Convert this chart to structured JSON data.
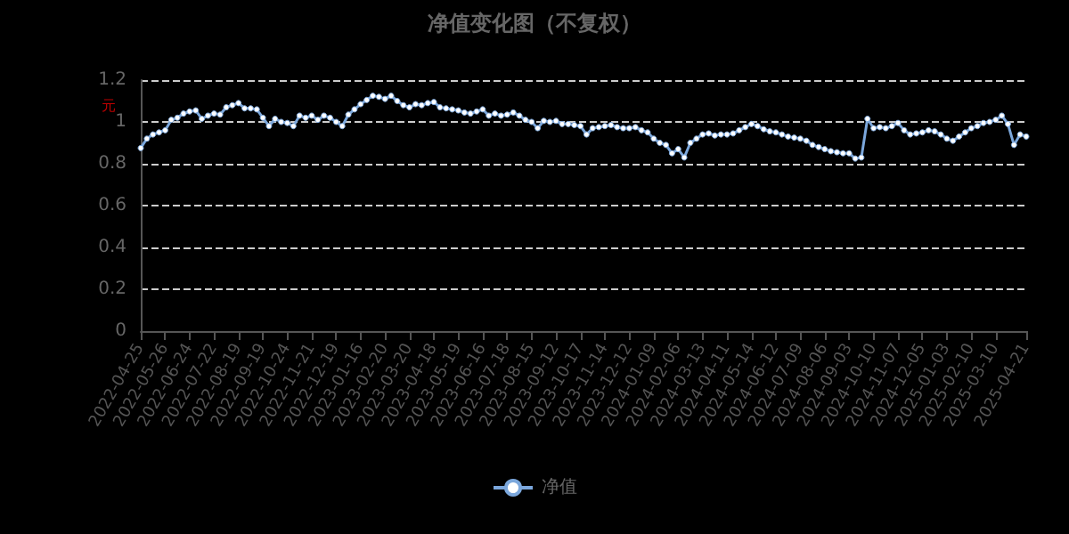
{
  "chart_data": {
    "type": "line",
    "title": "净值变化图（不复权）",
    "ylabel": "元",
    "categories": [
      "2022-04-25",
      null,
      null,
      null,
      "2022-05-26",
      null,
      null,
      null,
      "2022-06-24",
      null,
      null,
      null,
      "2022-07-22",
      null,
      null,
      null,
      "2022-08-19",
      null,
      null,
      null,
      "2022-09-19",
      null,
      null,
      null,
      "2022-10-24",
      null,
      null,
      null,
      "2022-11-21",
      null,
      null,
      null,
      "2022-12-19",
      null,
      null,
      null,
      "2023-01-16",
      null,
      null,
      null,
      "2023-02-20",
      null,
      null,
      null,
      "2023-03-20",
      null,
      null,
      null,
      "2023-04-18",
      null,
      null,
      null,
      "2023-05-19",
      null,
      null,
      null,
      "2023-06-16",
      null,
      null,
      null,
      "2023-07-18",
      null,
      null,
      null,
      "2023-08-15",
      null,
      null,
      null,
      "2023-09-12",
      null,
      null,
      null,
      "2023-10-17",
      null,
      null,
      null,
      "2023-11-14",
      null,
      null,
      null,
      "2023-12-12",
      null,
      null,
      null,
      "2024-01-09",
      null,
      null,
      null,
      "2024-02-06",
      null,
      null,
      null,
      "2024-03-13",
      null,
      null,
      null,
      "2024-04-11",
      null,
      null,
      null,
      "2024-05-14",
      null,
      null,
      null,
      "2024-06-12",
      null,
      null,
      null,
      "2024-07-09",
      null,
      null,
      null,
      "2024-08-06",
      null,
      null,
      null,
      "2024-09-03",
      null,
      null,
      null,
      "2024-10-10",
      null,
      null,
      null,
      "2024-11-07",
      null,
      null,
      null,
      "2024-12-05",
      null,
      null,
      null,
      "2025-01-03",
      null,
      null,
      null,
      "2025-02-10",
      null,
      null,
      null,
      "2025-03-10",
      null,
      null,
      null,
      null,
      "2025-04-21"
    ],
    "series": [
      {
        "name": "净值",
        "color": "#7ba7dc",
        "values": [
          0.875,
          0.92,
          0.94,
          0.95,
          0.96,
          1.01,
          1.02,
          1.04,
          1.05,
          1.055,
          1.015,
          1.03,
          1.04,
          1.035,
          1.07,
          1.08,
          1.09,
          1.065,
          1.065,
          1.06,
          1.02,
          0.98,
          1.015,
          1.0,
          0.995,
          0.98,
          1.03,
          1.02,
          1.03,
          1.01,
          1.03,
          1.02,
          1.0,
          0.98,
          1.035,
          1.06,
          1.085,
          1.105,
          1.125,
          1.12,
          1.11,
          1.125,
          1.1,
          1.08,
          1.07,
          1.085,
          1.08,
          1.09,
          1.095,
          1.07,
          1.065,
          1.06,
          1.055,
          1.045,
          1.04,
          1.05,
          1.06,
          1.03,
          1.04,
          1.03,
          1.035,
          1.045,
          1.03,
          1.01,
          1.0,
          0.97,
          1.005,
          1.0,
          1.005,
          0.99,
          0.99,
          0.985,
          0.98,
          0.94,
          0.97,
          0.975,
          0.98,
          0.985,
          0.975,
          0.97,
          0.97,
          0.975,
          0.96,
          0.95,
          0.92,
          0.9,
          0.89,
          0.85,
          0.87,
          0.83,
          0.9,
          0.92,
          0.94,
          0.945,
          0.935,
          0.94,
          0.94,
          0.945,
          0.96,
          0.975,
          0.99,
          0.98,
          0.965,
          0.955,
          0.95,
          0.94,
          0.93,
          0.925,
          0.92,
          0.91,
          0.89,
          0.88,
          0.87,
          0.86,
          0.855,
          0.85,
          0.85,
          0.825,
          0.83,
          1.015,
          0.97,
          0.975,
          0.97,
          0.98,
          0.995,
          0.96,
          0.94,
          0.945,
          0.95,
          0.96,
          0.955,
          0.94,
          0.92,
          0.91,
          0.93,
          0.95,
          0.97,
          0.98,
          0.995,
          1.0,
          1.01,
          1.03,
          0.99,
          0.89,
          0.94,
          0.93
        ]
      }
    ],
    "ylim": [
      0,
      1.2
    ],
    "yticks": [
      0,
      0.2,
      0.4,
      0.6,
      0.8,
      1,
      1.2
    ],
    "grid": "y",
    "legend": "bottom",
    "marker": "circle",
    "line_style": "solid"
  }
}
